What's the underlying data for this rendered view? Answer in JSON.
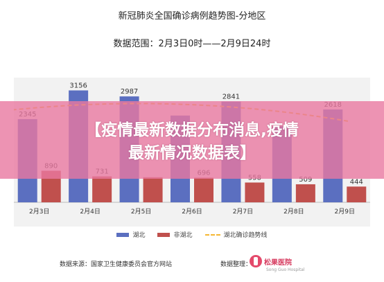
{
  "header": {
    "title": "新冠肺炎全国确诊病例趋势图-分地区",
    "range": "数据范围：2月3日0时——2月9日24时"
  },
  "banner": {
    "line1": "【疫情最新数据分布消息,疫情",
    "line2": "最新情况数据表】"
  },
  "colors": {
    "hubei": "#5b6fc0",
    "non_hubei": "#c0504d",
    "trend": "#f5b731",
    "banner": "#e878a0"
  },
  "chart_data": {
    "type": "bar",
    "categories": [
      "2月3日",
      "2月4日",
      "2月5日",
      "2月6日",
      "2月7日",
      "2月8日",
      "2月9日"
    ],
    "series": [
      {
        "name": "湖北",
        "values": [
          2345,
          3156,
          2987,
          2447,
          2841,
          2147,
          2618
        ]
      },
      {
        "name": "非湖北",
        "values": [
          890,
          731,
          707,
          696,
          558,
          509,
          444
        ]
      }
    ],
    "visible_labels": {
      "湖北": [
        "2345",
        "3156",
        "2987",
        "",
        "2841",
        "",
        "2618"
      ],
      "非湖北": [
        "890",
        "731",
        "",
        "696",
        "558",
        "509",
        "444"
      ]
    },
    "trend": {
      "name": "湖北确诊趋势线",
      "style": "dashed",
      "shape": "polynomial"
    },
    "ylim": [
      0,
      3400
    ],
    "grid": false,
    "legend_position": "bottom"
  },
  "footer": {
    "source": "数据来源：国家卫生健康委员会官方网站",
    "monitor": "数据整理：",
    "logo_name": "松果医院",
    "logo_sub": "Song Guo Hospital"
  }
}
